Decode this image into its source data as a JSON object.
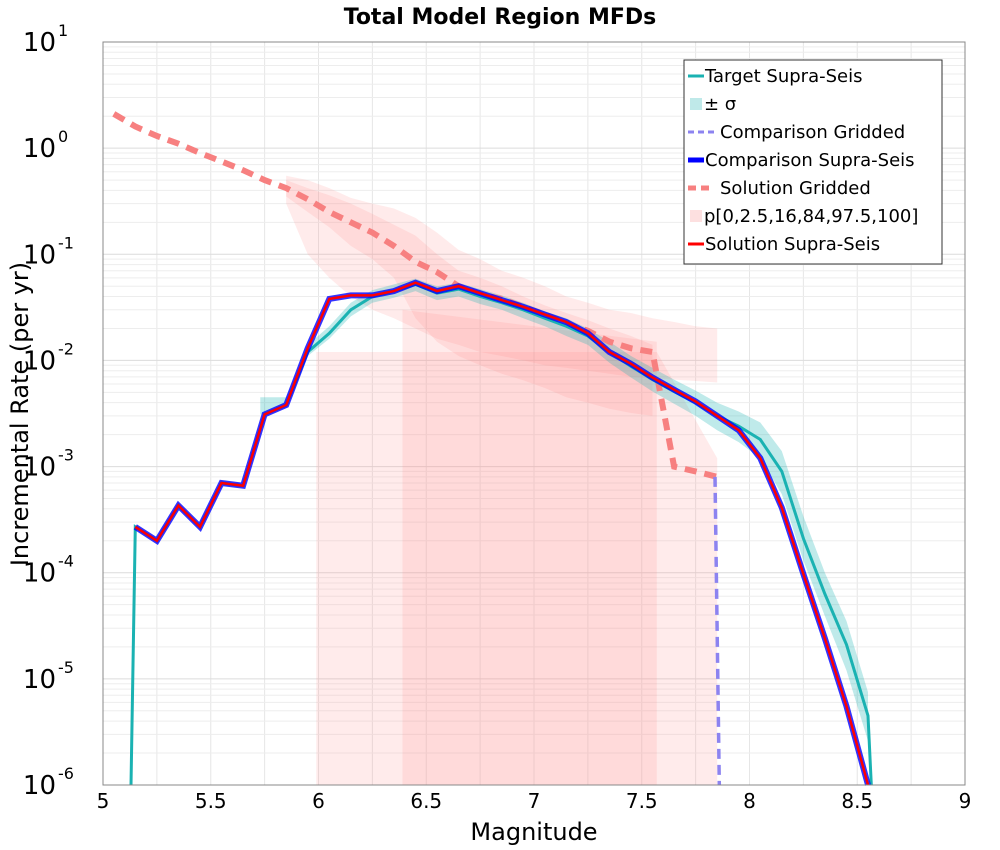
{
  "chart_data": {
    "type": "line",
    "title": "Total Model Region MFDs",
    "xlabel": "Magnitude",
    "ylabel": "Incremental Rate (per yr)",
    "xlim": [
      5,
      9
    ],
    "ylim": [
      1e-06,
      10
    ],
    "yscale": "log",
    "grid": true,
    "legend_position": "top-right",
    "x_ticks": [
      "5",
      "5.5",
      "6",
      "6.5",
      "7",
      "7.5",
      "8",
      "8.5",
      "9"
    ],
    "y_ticks": [
      {
        "base": "10",
        "exp": "-6",
        "value": 1e-06
      },
      {
        "base": "10",
        "exp": "-5",
        "value": 1e-05
      },
      {
        "base": "10",
        "exp": "-4",
        "value": 0.0001
      },
      {
        "base": "10",
        "exp": "-3",
        "value": 0.001
      },
      {
        "base": "10",
        "exp": "-2",
        "value": 0.01
      },
      {
        "base": "10",
        "exp": "-1",
        "value": 0.1
      },
      {
        "base": "10",
        "exp": "0",
        "value": 1
      },
      {
        "base": "10",
        "exp": "1",
        "value": 10
      }
    ],
    "legend": [
      {
        "label": "Target Supra-Seis",
        "color": "#1ab2b2",
        "style": "solid"
      },
      {
        "label": "± σ",
        "color": "#bfe9e9",
        "style": "band"
      },
      {
        "label": "Comparison Gridded",
        "color": "#8c83f0",
        "style": "dashed"
      },
      {
        "label": "Comparison Supra-Seis",
        "color": "#0000ff",
        "style": "thick"
      },
      {
        "label": "Solution Gridded",
        "color": "#f78080",
        "style": "dashed-thick"
      },
      {
        "label": "p[0,2.5,16,84,97.5,100]",
        "color": "#fde0e0",
        "style": "band"
      },
      {
        "label": "Solution Supra-Seis",
        "color": "#ff0000",
        "style": "solid"
      }
    ],
    "series": [
      {
        "name": "Target Supra-Seis",
        "color": "#1ab2b2",
        "x": [
          5.13,
          5.15,
          5.25,
          5.35,
          5.45,
          5.55,
          5.65,
          5.75,
          5.85,
          5.95,
          6.05,
          6.15,
          6.25,
          6.35,
          6.45,
          6.55,
          6.65,
          6.75,
          6.85,
          6.95,
          7.05,
          7.15,
          7.25,
          7.35,
          7.45,
          7.55,
          7.65,
          7.75,
          7.85,
          7.95,
          8.05,
          8.15,
          8.25,
          8.35,
          8.45,
          8.55,
          8.565
        ],
        "y": [
          1e-06,
          0.00027,
          0.0002,
          0.00043,
          0.00027,
          0.0007,
          0.00066,
          0.0031,
          0.0038,
          0.012,
          0.018,
          0.03,
          0.04,
          0.045,
          0.052,
          0.043,
          0.047,
          0.04,
          0.035,
          0.03,
          0.025,
          0.021,
          0.017,
          0.012,
          0.0088,
          0.0066,
          0.0051,
          0.004,
          0.003,
          0.0024,
          0.0018,
          0.0009,
          0.00021,
          6.3e-05,
          2.1e-05,
          4.5e-06,
          1e-06
        ]
      },
      {
        "name": "± σ",
        "color": "#bfe9e9",
        "x": [
          5.73,
          5.75,
          5.85,
          5.95,
          6.05,
          6.15,
          6.25,
          6.35,
          6.45,
          6.55,
          6.65,
          6.75,
          6.85,
          6.95,
          7.05,
          7.15,
          7.25,
          7.35,
          7.45,
          7.55,
          7.65,
          7.75,
          7.85,
          7.95,
          8.05,
          8.15,
          8.25,
          8.35,
          8.45,
          8.55
        ],
        "upper": [
          0.0045,
          0.0045,
          0.0045,
          0.014,
          0.021,
          0.035,
          0.046,
          0.052,
          0.059,
          0.05,
          0.054,
          0.047,
          0.041,
          0.035,
          0.029,
          0.025,
          0.02,
          0.015,
          0.011,
          0.0085,
          0.0066,
          0.0052,
          0.004,
          0.0033,
          0.0026,
          0.0014,
          0.00034,
          0.0001,
          3.5e-05,
          7.5e-06
        ],
        "lower": [
          0.0031,
          0.0031,
          0.0036,
          0.011,
          0.016,
          0.026,
          0.035,
          0.039,
          0.045,
          0.037,
          0.04,
          0.034,
          0.03,
          0.025,
          0.021,
          0.017,
          0.014,
          0.0095,
          0.0069,
          0.0051,
          0.0039,
          0.003,
          0.0022,
          0.0017,
          0.0012,
          0.00055,
          0.00013,
          3.9e-05,
          1.2e-05,
          2.6e-06
        ]
      },
      {
        "name": "Comparison Gridded",
        "color": "#8c83f0",
        "x": [
          7.84,
          7.86
        ],
        "y": [
          0.0008,
          1e-06
        ]
      },
      {
        "name": "Comparison Supra-Seis",
        "color": "#0000ff",
        "x": [
          5.15,
          5.25,
          5.35,
          5.45,
          5.55,
          5.65,
          5.75,
          5.85,
          5.95,
          6.05,
          6.15,
          6.25,
          6.35,
          6.45,
          6.55,
          6.65,
          6.75,
          6.85,
          6.95,
          7.05,
          7.15,
          7.25,
          7.35,
          7.45,
          7.55,
          7.65,
          7.75,
          7.85,
          7.95,
          8.05,
          8.15,
          8.25,
          8.35,
          8.45,
          8.55
        ],
        "y": [
          0.00027,
          0.0002,
          0.00043,
          0.00027,
          0.0007,
          0.00066,
          0.0031,
          0.0038,
          0.013,
          0.038,
          0.041,
          0.041,
          0.045,
          0.054,
          0.045,
          0.05,
          0.043,
          0.037,
          0.032,
          0.027,
          0.023,
          0.018,
          0.012,
          0.0093,
          0.0069,
          0.0053,
          0.0041,
          0.003,
          0.0022,
          0.0012,
          0.00041,
          9.7e-05,
          2.4e-05,
          5.5e-06,
          1e-06
        ]
      },
      {
        "name": "Solution Gridded",
        "color": "#f78080",
        "x": [
          5.05,
          5.15,
          5.25,
          5.35,
          5.45,
          5.55,
          5.65,
          5.75,
          5.85,
          5.95,
          6.05,
          6.15,
          6.25,
          6.35,
          6.45,
          6.55,
          6.65,
          6.75,
          6.85,
          6.95,
          7.05,
          7.15,
          7.25,
          7.35,
          7.45,
          7.55,
          7.65,
          7.75,
          7.85
        ],
        "y": [
          2.1,
          1.6,
          1.3,
          1.1,
          0.9,
          0.75,
          0.62,
          0.5,
          0.42,
          0.33,
          0.25,
          0.2,
          0.16,
          0.12,
          0.085,
          0.068,
          0.05,
          0.042,
          0.038,
          0.032,
          0.027,
          0.022,
          0.019,
          0.015,
          0.013,
          0.012,
          0.001,
          0.0009,
          0.0008
        ]
      },
      {
        "name": "p[0,2.5,16,84,97.5,100]",
        "color": "#fde0e0",
        "bands": [
          {
            "x": [
              5.85,
              5.95,
              6.05,
              6.15,
              6.25,
              6.35,
              6.45,
              6.55,
              6.65,
              6.75,
              6.85,
              6.95,
              7.05,
              7.15,
              7.25,
              7.35,
              7.45,
              7.55,
              7.65,
              7.75,
              7.85
            ],
            "upper": [
              0.55,
              0.5,
              0.42,
              0.34,
              0.3,
              0.27,
              0.22,
              0.16,
              0.11,
              0.09,
              0.07,
              0.06,
              0.05,
              0.04,
              0.035,
              0.03,
              0.028,
              0.025,
              0.023,
              0.021,
              0.02
            ],
            "lower": [
              0.3,
              0.1,
              0.06,
              0.04,
              0.03,
              0.025,
              0.02,
              0.016,
              0.014,
              0.012,
              0.011,
              0.01,
              0.009,
              0.0085,
              0.008,
              0.0075,
              0.007,
              0.0068,
              0.0066,
              0.0064,
              0.0062
            ]
          },
          {
            "x": [
              5.85,
              5.95,
              6.05,
              6.15,
              6.25,
              6.35,
              6.45,
              6.55,
              6.65,
              6.75,
              6.85,
              6.95,
              7.05,
              7.15,
              7.25,
              7.35,
              7.45,
              7.55
            ],
            "upper": [
              0.5,
              0.42,
              0.36,
              0.3,
              0.24,
              0.19,
              0.15,
              0.1,
              0.07,
              0.06,
              0.05,
              0.04,
              0.033,
              0.028,
              0.024,
              0.02,
              0.017,
              0.014
            ],
            "lower": [
              0.35,
              0.25,
              0.18,
              0.12,
              0.09,
              0.06,
              0.025,
              0.015,
              0.011,
              0.009,
              0.0075,
              0.0065,
              0.0055,
              0.0045,
              0.004,
              0.0035,
              0.0032,
              0.003
            ]
          },
          {
            "x": [
              5.99,
              6.39,
              7.57,
              7.85
            ],
            "upper": [
              0.012,
              0.012,
              0.012,
              0.0012
            ],
            "lower": [
              1e-06,
              1e-06,
              1e-06,
              1e-06
            ]
          },
          {
            "x": [
              6.39,
              7.57
            ],
            "upper": [
              0.03,
              0.015
            ],
            "lower": [
              1e-06,
              1e-06
            ]
          }
        ]
      },
      {
        "name": "Solution Supra-Seis",
        "color": "#ff0000",
        "x": [
          5.15,
          5.25,
          5.35,
          5.45,
          5.55,
          5.65,
          5.75,
          5.85,
          5.95,
          6.05,
          6.15,
          6.25,
          6.35,
          6.45,
          6.55,
          6.65,
          6.75,
          6.85,
          6.95,
          7.05,
          7.15,
          7.25,
          7.35,
          7.45,
          7.55,
          7.65,
          7.75,
          7.85,
          7.95,
          8.05,
          8.15,
          8.25,
          8.35,
          8.45,
          8.55
        ],
        "y": [
          0.00027,
          0.0002,
          0.00043,
          0.00027,
          0.0007,
          0.00066,
          0.0031,
          0.0038,
          0.013,
          0.038,
          0.041,
          0.041,
          0.045,
          0.054,
          0.045,
          0.05,
          0.043,
          0.037,
          0.032,
          0.027,
          0.023,
          0.018,
          0.012,
          0.0093,
          0.0069,
          0.0053,
          0.0041,
          0.003,
          0.0022,
          0.0012,
          0.00041,
          9.7e-05,
          2.4e-05,
          5.5e-06,
          1e-06
        ]
      }
    ]
  }
}
